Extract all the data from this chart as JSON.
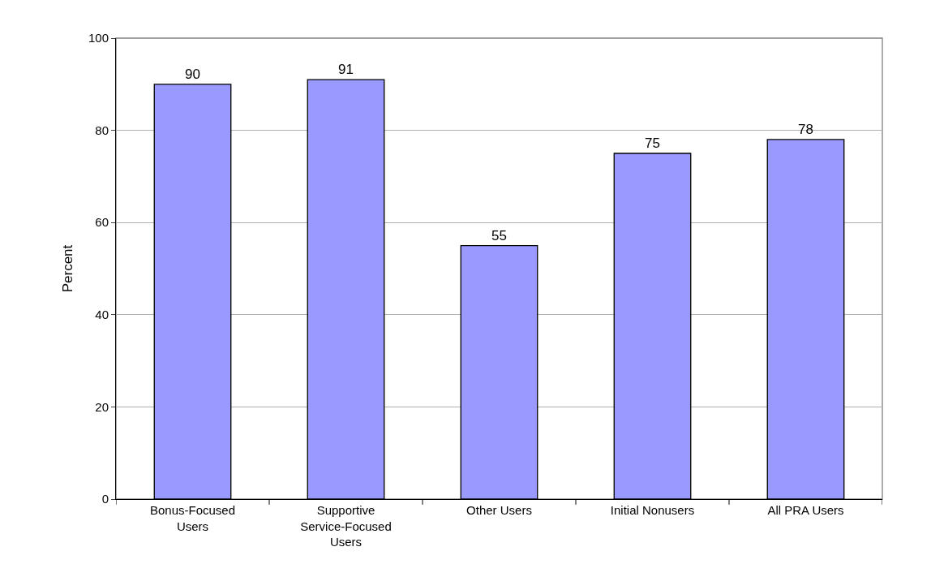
{
  "chart_data": {
    "type": "bar",
    "ylabel": "Percent",
    "categories": [
      "Bonus-Focused Users",
      "Supportive Service-Focused Users",
      "Other Users",
      "Initial Nonusers",
      "All PRA Users"
    ],
    "values": [
      90,
      91,
      55,
      75,
      78
    ],
    "color": "#9999ff",
    "ylim": [
      0,
      100
    ],
    "yticks": [
      0,
      20,
      40,
      60,
      80,
      100
    ],
    "grid": "y",
    "data_labels": true
  }
}
